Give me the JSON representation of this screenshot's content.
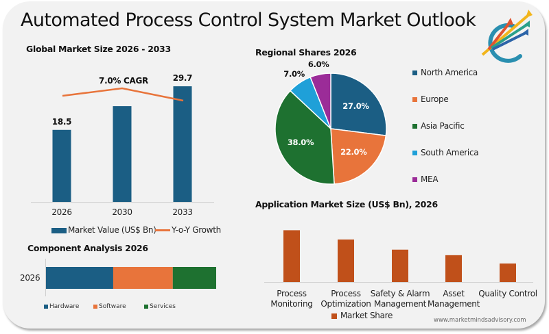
{
  "page": {
    "title": "Automated Process Control System Market Outlook",
    "logo": "rising-arrows-logo-icon",
    "footer_url": "www.marketmindsadvisory.com"
  },
  "colors": {
    "market_value": "#1b5e84",
    "growth_line": "#e8743b",
    "hardware": "#1b5e84",
    "software": "#e8743b",
    "services": "#1e7130",
    "north_america": "#1b5e84",
    "europe": "#e8743b",
    "asia_pacific": "#1e7130",
    "south_america": "#1fa0d8",
    "mea": "#9b2c98",
    "application": "#c0501a"
  },
  "chart_data": [
    {
      "type": "bar",
      "title": "Global Market Size 2026 - 2033",
      "categories": [
        "2026",
        "2030",
        "2033"
      ],
      "series": [
        {
          "name": "Market Value (US$ Bn)",
          "values": [
            18.5,
            24.6,
            29.7
          ],
          "data_labels": [
            "18.5",
            "",
            "29.7"
          ]
        },
        {
          "name": "Y-o-Y Growth",
          "type": "line",
          "values": [
            6.2,
            7.0,
            5.6
          ]
        }
      ],
      "annotation": "7.0% CAGR",
      "legend": [
        "Market Value (US$ Bn)",
        "Y-o-Y Growth"
      ],
      "legend_position": "bottom",
      "ylim": [
        0,
        32
      ]
    },
    {
      "type": "pie",
      "title": "Regional Shares 2026",
      "labels": [
        "North America",
        "Europe",
        "Asia Pacific",
        "South America",
        "MEA"
      ],
      "values": [
        27.0,
        22.0,
        38.0,
        7.0,
        6.0
      ],
      "data_labels": [
        "27.0%",
        "22.0%",
        "38.0%",
        "7.0%",
        "6.0%"
      ],
      "legend_position": "right"
    },
    {
      "type": "bar",
      "orientation": "horizontal-stacked",
      "title": "Component Analysis 2026",
      "categories": [
        "2026"
      ],
      "series": [
        {
          "name": "Hardware",
          "values": [
            39.5
          ]
        },
        {
          "name": "Software",
          "values": [
            35.0
          ]
        },
        {
          "name": "Services",
          "values": [
            25.5
          ]
        }
      ],
      "legend_position": "bottom"
    },
    {
      "type": "bar",
      "title": "Application Market Size (US$ Bn), 2026",
      "categories": [
        "Process Monitoring",
        "Process Optimization",
        "Safety & Alarm Management",
        "Asset Management",
        "Quality Control"
      ],
      "category_lines": [
        [
          "Process",
          "Monitoring"
        ],
        [
          "Process",
          "Optimization"
        ],
        [
          "Safety & Alarm",
          "Management"
        ],
        [
          "Asset",
          "Management"
        ],
        [
          "Quality Control"
        ]
      ],
      "series": [
        {
          "name": "Market Share",
          "values": [
            5.6,
            4.6,
            3.5,
            2.9,
            2.0
          ]
        }
      ],
      "legend_position": "bottom",
      "ylim": [
        0,
        6
      ]
    }
  ]
}
